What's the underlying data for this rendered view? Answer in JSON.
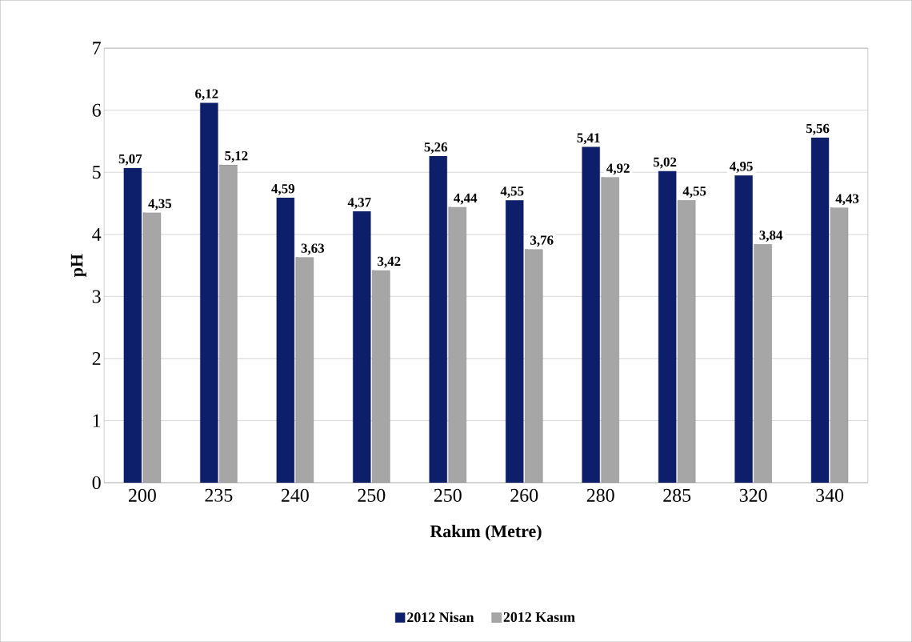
{
  "chart_data": {
    "type": "bar",
    "xlabel": "Rakım (Metre)",
    "ylabel": "pH",
    "categories": [
      "200",
      "235",
      "240",
      "250",
      "250",
      "260",
      "280",
      "285",
      "320",
      "340"
    ],
    "series": [
      {
        "name": "2012 Nisan",
        "color": "#0d1f6b",
        "values": [
          5.07,
          6.12,
          4.59,
          4.37,
          5.26,
          4.55,
          5.41,
          5.02,
          4.95,
          5.56
        ],
        "value_labels": [
          "5,07",
          "6,12",
          "4,59",
          "4,37",
          "5,26",
          "4,55",
          "5,41",
          "5,02",
          "4,95",
          "5,56"
        ]
      },
      {
        "name": "2012 Kasım",
        "color": "#a6a6a6",
        "values": [
          4.35,
          5.12,
          3.63,
          3.42,
          4.44,
          3.76,
          4.92,
          4.55,
          3.84,
          4.43
        ],
        "value_labels": [
          "4,35",
          "5,12",
          "3,63",
          "3,42",
          "4,44",
          "3,76",
          "4,92",
          "4,55",
          "3,84",
          "4,43"
        ]
      }
    ],
    "ylim": [
      0,
      7
    ],
    "yticks": [
      0,
      1,
      2,
      3,
      4,
      5,
      6,
      7
    ],
    "grid": "y",
    "legend": "bottom"
  }
}
